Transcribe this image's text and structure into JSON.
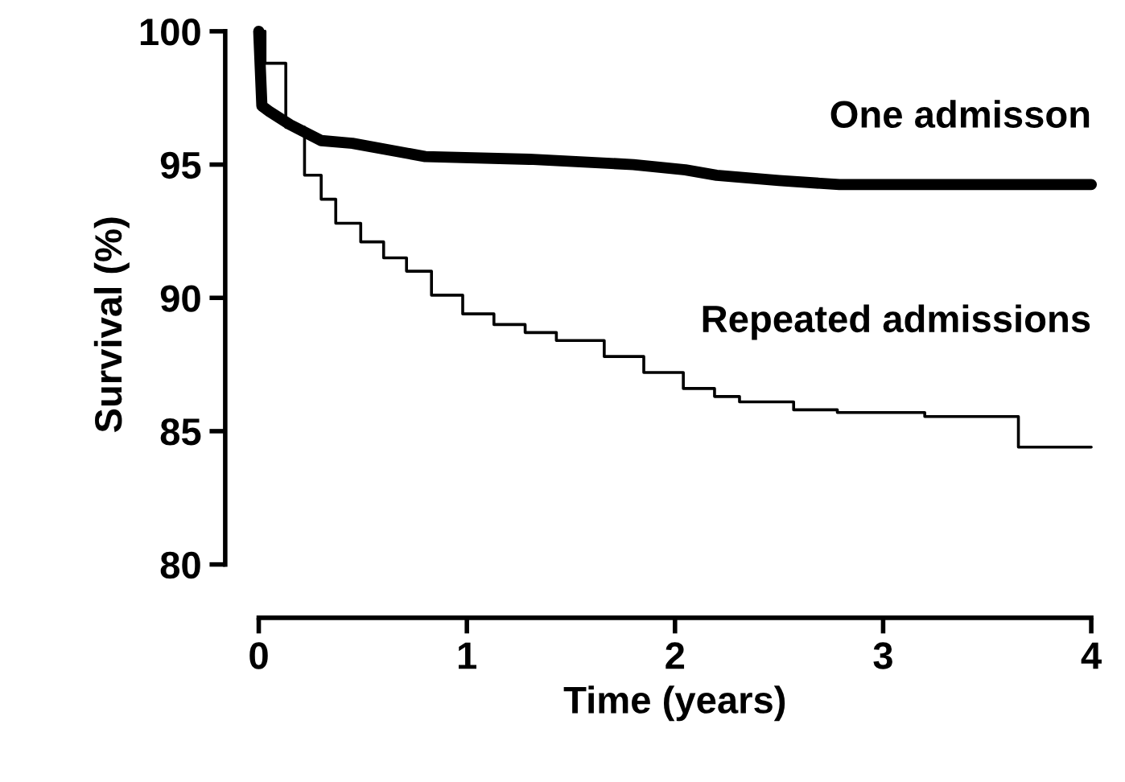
{
  "chart_data": {
    "type": "line",
    "xlabel": "Time (years)",
    "ylabel": "Survival (%)",
    "xlim": [
      0,
      4
    ],
    "ylim": [
      78,
      100
    ],
    "xticks": [
      0,
      1,
      2,
      3,
      4
    ],
    "yticks": [
      80,
      85,
      90,
      95,
      100
    ],
    "grid": false,
    "legend": false,
    "marker": "none",
    "series": [
      {
        "name": "One admisson",
        "color": "#000000",
        "x": [
          0,
          0.015,
          0.05,
          0.15,
          0.3,
          0.45,
          0.8,
          1.3,
          1.8,
          2.05,
          2.2,
          2.5,
          2.79,
          4
        ],
        "values": [
          100,
          97.2,
          97.0,
          96.5,
          95.9,
          95.8,
          95.3,
          95.2,
          95.0,
          94.8,
          94.6,
          94.4,
          94.25,
          94.25
        ]
      },
      {
        "name": "Repeated admissions",
        "color": "#000000",
        "type": "step",
        "x": [
          0,
          0.03,
          0.13,
          0.22,
          0.3,
          0.37,
          0.49,
          0.6,
          0.71,
          0.83,
          0.98,
          1.13,
          1.28,
          1.43,
          1.66,
          1.85,
          2.04,
          2.19,
          2.31,
          2.57,
          2.78,
          3.2,
          3.65,
          4
        ],
        "values": [
          100,
          98.8,
          96.4,
          94.6,
          93.7,
          92.8,
          92.1,
          91.5,
          91.0,
          90.1,
          89.4,
          89.0,
          88.7,
          88.4,
          87.8,
          87.2,
          86.6,
          86.3,
          86.1,
          85.8,
          85.7,
          85.55,
          84.4,
          84.4
        ]
      }
    ]
  }
}
